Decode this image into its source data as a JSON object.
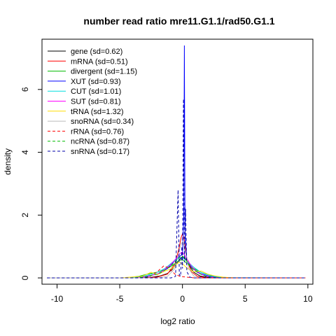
{
  "chart_data": {
    "type": "line",
    "title": "number read ratio mre11.G1.1/rad50.G1.1",
    "xlabel": "log2 ratio",
    "ylabel": "density",
    "xlim": [
      -11.2,
      10.4
    ],
    "ylim": [
      -0.2,
      7.6
    ],
    "x_ticks": [
      -10,
      -5,
      0,
      5,
      10
    ],
    "y_ticks": [
      0,
      2,
      4,
      6
    ],
    "legend_position": "top-left",
    "series": [
      {
        "name": "gene (sd=0.62)",
        "color": "#000000",
        "dash": "solid",
        "points": [
          [
            -10.8,
            0
          ],
          [
            -3.5,
            0
          ],
          [
            -2.5,
            0.02
          ],
          [
            -1.8,
            0.06
          ],
          [
            -1.2,
            0.14
          ],
          [
            -0.8,
            0.28
          ],
          [
            -0.5,
            0.45
          ],
          [
            -0.2,
            0.6
          ],
          [
            0.0,
            0.68
          ],
          [
            0.2,
            0.64
          ],
          [
            0.5,
            0.42
          ],
          [
            0.9,
            0.18
          ],
          [
            1.4,
            0.06
          ],
          [
            2.2,
            0.01
          ],
          [
            3.0,
            0
          ],
          [
            9.8,
            0
          ]
        ]
      },
      {
        "name": "mRNA (sd=0.51)",
        "color": "#ff0000",
        "dash": "solid",
        "points": [
          [
            -10.8,
            0
          ],
          [
            -3.0,
            0
          ],
          [
            -2.0,
            0.03
          ],
          [
            -1.2,
            0.12
          ],
          [
            -0.6,
            0.45
          ],
          [
            -0.3,
            0.9
          ],
          [
            -0.1,
            1.3
          ],
          [
            0.0,
            1.4
          ],
          [
            0.15,
            1.2
          ],
          [
            0.35,
            0.6
          ],
          [
            0.7,
            0.2
          ],
          [
            1.2,
            0.05
          ],
          [
            2.0,
            0
          ],
          [
            9.8,
            0
          ]
        ]
      },
      {
        "name": "divergent (sd=1.15)",
        "color": "#00bb00",
        "dash": "solid",
        "points": [
          [
            -10.8,
            0
          ],
          [
            -4.5,
            0
          ],
          [
            -3.5,
            0.05
          ],
          [
            -2.8,
            0.12
          ],
          [
            -2.0,
            0.18
          ],
          [
            -1.3,
            0.28
          ],
          [
            -0.7,
            0.42
          ],
          [
            -0.3,
            0.55
          ],
          [
            0.0,
            0.58
          ],
          [
            0.4,
            0.45
          ],
          [
            0.9,
            0.3
          ],
          [
            1.5,
            0.17
          ],
          [
            2.3,
            0.07
          ],
          [
            3.2,
            0.02
          ],
          [
            4.0,
            0
          ],
          [
            9.8,
            0
          ]
        ]
      },
      {
        "name": "XUT (sd=0.93)",
        "color": "#0000ff",
        "dash": "solid",
        "points": [
          [
            -10.8,
            0
          ],
          [
            -4.0,
            0
          ],
          [
            -3.0,
            0.04
          ],
          [
            -2.0,
            0.12
          ],
          [
            -1.2,
            0.3
          ],
          [
            -0.6,
            0.55
          ],
          [
            -0.2,
            0.7
          ],
          [
            0.0,
            0.75
          ],
          [
            0.1,
            2.0
          ],
          [
            0.15,
            7.4
          ],
          [
            0.2,
            1.5
          ],
          [
            0.35,
            0.55
          ],
          [
            0.8,
            0.3
          ],
          [
            1.4,
            0.14
          ],
          [
            2.2,
            0.05
          ],
          [
            3.2,
            0
          ],
          [
            9.8,
            0
          ]
        ]
      },
      {
        "name": "CUT (sd=1.01)",
        "color": "#00dddd",
        "dash": "solid",
        "points": [
          [
            -10.8,
            0
          ],
          [
            -4.2,
            0
          ],
          [
            -3.2,
            0.05
          ],
          [
            -2.2,
            0.14
          ],
          [
            -1.4,
            0.3
          ],
          [
            -0.8,
            0.5
          ],
          [
            -0.3,
            0.62
          ],
          [
            0.0,
            0.65
          ],
          [
            0.4,
            0.52
          ],
          [
            0.9,
            0.34
          ],
          [
            1.5,
            0.17
          ],
          [
            2.3,
            0.06
          ],
          [
            3.2,
            0.01
          ],
          [
            9.8,
            0
          ]
        ]
      },
      {
        "name": "SUT (sd=0.81)",
        "color": "#ff00ff",
        "dash": "solid",
        "points": [
          [
            -10.8,
            0
          ],
          [
            -3.8,
            0
          ],
          [
            -2.8,
            0.04
          ],
          [
            -1.8,
            0.15
          ],
          [
            -1.0,
            0.4
          ],
          [
            -0.5,
            0.62
          ],
          [
            -0.2,
            0.78
          ],
          [
            0.0,
            0.82
          ],
          [
            0.3,
            0.65
          ],
          [
            0.7,
            0.38
          ],
          [
            1.2,
            0.17
          ],
          [
            1.9,
            0.05
          ],
          [
            2.8,
            0
          ],
          [
            9.8,
            0
          ]
        ]
      },
      {
        "name": "tRNA (sd=1.32)",
        "color": "#ffdd00",
        "dash": "solid",
        "points": [
          [
            -10.8,
            0
          ],
          [
            -5.0,
            0
          ],
          [
            -3.2,
            0.05
          ],
          [
            -2.5,
            0.18
          ],
          [
            -2.0,
            0.1
          ],
          [
            -1.4,
            0.22
          ],
          [
            -0.8,
            0.3
          ],
          [
            -0.3,
            0.5
          ],
          [
            0.0,
            0.45
          ],
          [
            0.4,
            0.3
          ],
          [
            0.9,
            0.2
          ],
          [
            1.5,
            0.22
          ],
          [
            2.0,
            0.12
          ],
          [
            2.6,
            0.06
          ],
          [
            3.3,
            0.02
          ],
          [
            4.2,
            0
          ],
          [
            9.8,
            0
          ]
        ]
      },
      {
        "name": "snoRNA (sd=0.34)",
        "color": "#bbbbbb",
        "dash": "solid",
        "points": [
          [
            -10.8,
            0
          ],
          [
            -2.0,
            0
          ],
          [
            -1.2,
            0.05
          ],
          [
            -0.6,
            0.3
          ],
          [
            -0.3,
            0.8
          ],
          [
            -0.1,
            1.1
          ],
          [
            0.05,
            1.15
          ],
          [
            0.25,
            0.8
          ],
          [
            0.5,
            0.3
          ],
          [
            0.9,
            0.06
          ],
          [
            1.5,
            0
          ],
          [
            9.8,
            0
          ]
        ]
      },
      {
        "name": "rRNA (sd=0.76)",
        "color": "#ff0000",
        "dash": "dashed",
        "points": [
          [
            -10.8,
            0
          ],
          [
            -3.5,
            0
          ],
          [
            -2.6,
            0.05
          ],
          [
            -2.0,
            0.2
          ],
          [
            -1.5,
            0.38
          ],
          [
            -1.1,
            0.32
          ],
          [
            -0.6,
            0.12
          ],
          [
            -0.2,
            0.05
          ],
          [
            0.2,
            0.03
          ],
          [
            1.0,
            0
          ],
          [
            9.8,
            0
          ]
        ]
      },
      {
        "name": "ncRNA (sd=0.87)",
        "color": "#00bb00",
        "dash": "dashed",
        "points": [
          [
            -10.8,
            0
          ],
          [
            -3.8,
            0
          ],
          [
            -2.8,
            0.04
          ],
          [
            -1.8,
            0.15
          ],
          [
            -1.0,
            0.35
          ],
          [
            -0.5,
            0.55
          ],
          [
            -0.2,
            0.66
          ],
          [
            0.0,
            0.7
          ],
          [
            0.3,
            0.55
          ],
          [
            0.8,
            0.3
          ],
          [
            1.3,
            0.14
          ],
          [
            2.0,
            0.04
          ],
          [
            2.8,
            0
          ],
          [
            9.8,
            0
          ]
        ]
      },
      {
        "name": "snRNA (sd=0.17)",
        "color": "#0000aa",
        "dash": "dashed",
        "points": [
          [
            -10.8,
            0
          ],
          [
            -0.9,
            0
          ],
          [
            -0.55,
            0.05
          ],
          [
            -0.35,
            2.8
          ],
          [
            -0.25,
            0.1
          ],
          [
            -0.15,
            0.05
          ],
          [
            -0.05,
            1.0
          ],
          [
            0.0,
            0.3
          ],
          [
            0.08,
            5.7
          ],
          [
            0.16,
            0.5
          ],
          [
            0.25,
            2.2
          ],
          [
            0.35,
            0.2
          ],
          [
            0.6,
            0.02
          ],
          [
            0.9,
            0
          ],
          [
            9.8,
            0
          ]
        ]
      }
    ]
  }
}
